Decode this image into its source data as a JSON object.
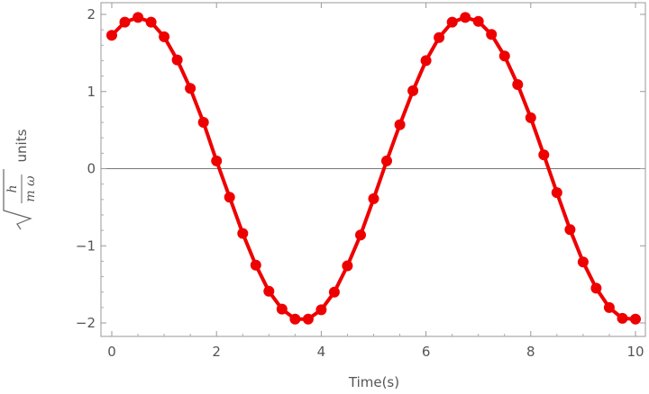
{
  "chart_data": {
    "type": "line",
    "title": "",
    "xlabel": "Time(s)",
    "ylabel": {
      "numerator": "h",
      "denominator": "m ω",
      "unit": "units"
    },
    "xlim": [
      0,
      10
    ],
    "ylim": [
      -2,
      2
    ],
    "xticks": [
      0,
      2,
      4,
      6,
      8,
      10
    ],
    "yticks": [
      -2,
      -1,
      0,
      1,
      2
    ],
    "grid": false,
    "legend": "none",
    "zero_line": true,
    "series": [
      {
        "color": "#ee0000",
        "markers": true,
        "x": [
          0,
          0.25,
          0.5,
          0.75,
          1,
          1.25,
          1.5,
          1.75,
          2,
          2.25,
          2.5,
          2.75,
          3,
          3.25,
          3.5,
          3.75,
          4,
          4.25,
          4.5,
          4.75,
          5,
          5.25,
          5.5,
          5.75,
          6,
          6.25,
          6.5,
          6.75,
          7,
          7.25,
          7.5,
          7.75,
          8,
          8.25,
          8.5,
          8.75,
          9,
          9.25,
          9.5,
          9.75,
          10
        ],
        "y": [
          1.73,
          1.9,
          1.96,
          1.9,
          1.71,
          1.41,
          1.04,
          0.6,
          0.1,
          -0.37,
          -0.84,
          -1.25,
          -1.59,
          -1.82,
          -1.95,
          -1.95,
          -1.83,
          -1.6,
          -1.26,
          -0.86,
          -0.39,
          0.1,
          0.57,
          1.01,
          1.4,
          1.7,
          1.9,
          1.96,
          1.91,
          1.74,
          1.46,
          1.09,
          0.66,
          0.18,
          -0.31,
          -0.79,
          -1.21,
          -1.55,
          -1.8,
          -1.94,
          -1.95
        ]
      }
    ]
  }
}
